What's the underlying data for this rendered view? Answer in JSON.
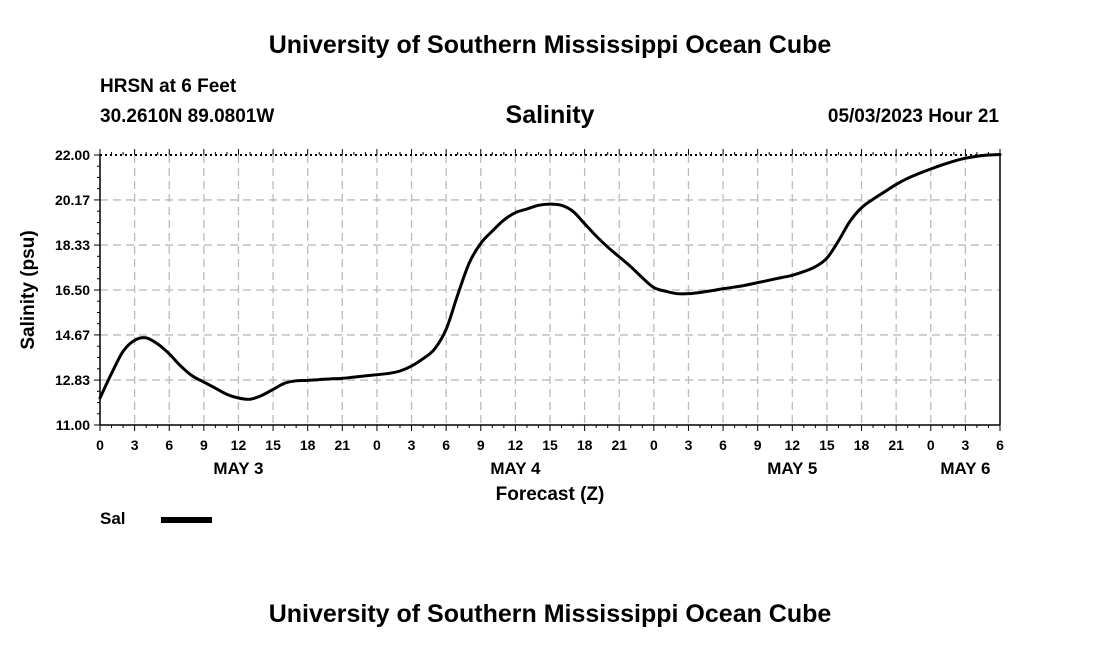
{
  "header": {
    "title": "University of Southern Mississippi Ocean Cube",
    "station": "HRSN at 6 Feet",
    "coordinates": "30.2610N  89.0801W",
    "chart_title": "Salinity",
    "datetime": "05/03/2023 Hour 21"
  },
  "footer": {
    "title": "University of Southern Mississippi Ocean Cube"
  },
  "legend": {
    "label": "Sal"
  },
  "colors": {
    "line": "#000000",
    "grid": "#bbbbbb",
    "background": "#ffffff"
  },
  "chart_data": {
    "type": "line",
    "title": "Salinity",
    "xlabel": "Forecast (Z)",
    "ylabel": "Salinity (psu)",
    "ylim": [
      11.0,
      22.0
    ],
    "yticks": [
      "11.00",
      "12.83",
      "14.67",
      "16.50",
      "18.33",
      "20.17",
      "22.00"
    ],
    "xlim": [
      0,
      78
    ],
    "xticks": [
      "0",
      "3",
      "6",
      "9",
      "12",
      "15",
      "18",
      "21",
      "0",
      "3",
      "6",
      "9",
      "12",
      "15",
      "18",
      "21",
      "0",
      "3",
      "6",
      "9",
      "12",
      "15",
      "18",
      "21",
      "0",
      "3",
      "6"
    ],
    "date_labels": [
      {
        "label": "MAY 3",
        "hour": 12
      },
      {
        "label": "MAY 4",
        "hour": 36
      },
      {
        "label": "MAY 5",
        "hour": 60
      },
      {
        "label": "MAY 6",
        "hour": 75
      }
    ],
    "grid": true,
    "series": [
      {
        "name": "Sal",
        "x": [
          0,
          1,
          2,
          3,
          4,
          5,
          6,
          7,
          8,
          9,
          10,
          11,
          12,
          13,
          14,
          15,
          16,
          17,
          18,
          19,
          20,
          21,
          22,
          23,
          24,
          25,
          26,
          27,
          28,
          29,
          30,
          31,
          32,
          33,
          34,
          35,
          36,
          37,
          38,
          39,
          40,
          41,
          42,
          43,
          44,
          45,
          46,
          47,
          48,
          49,
          50,
          51,
          52,
          53,
          54,
          55,
          56,
          57,
          58,
          59,
          60,
          61,
          62,
          63,
          64,
          65,
          66,
          67,
          68,
          69,
          70,
          71,
          72,
          73,
          74,
          75,
          76,
          77,
          78
        ],
        "values": [
          12.1,
          13.1,
          14.0,
          14.45,
          14.55,
          14.3,
          13.9,
          13.4,
          13.0,
          12.75,
          12.5,
          12.25,
          12.1,
          12.05,
          12.2,
          12.45,
          12.7,
          12.8,
          12.82,
          12.85,
          12.88,
          12.9,
          12.95,
          13.0,
          13.05,
          13.1,
          13.2,
          13.4,
          13.7,
          14.1,
          14.9,
          16.3,
          17.6,
          18.4,
          18.9,
          19.35,
          19.65,
          19.8,
          19.95,
          20.0,
          19.95,
          19.7,
          19.2,
          18.7,
          18.25,
          17.85,
          17.45,
          17.0,
          16.6,
          16.45,
          16.35,
          16.35,
          16.4,
          16.47,
          16.55,
          16.62,
          16.7,
          16.8,
          16.9,
          17.0,
          17.1,
          17.25,
          17.45,
          17.8,
          18.5,
          19.3,
          19.85,
          20.2,
          20.5,
          20.8,
          21.05,
          21.25,
          21.43,
          21.6,
          21.75,
          21.87,
          21.95,
          22.0,
          22.02
        ]
      }
    ]
  }
}
